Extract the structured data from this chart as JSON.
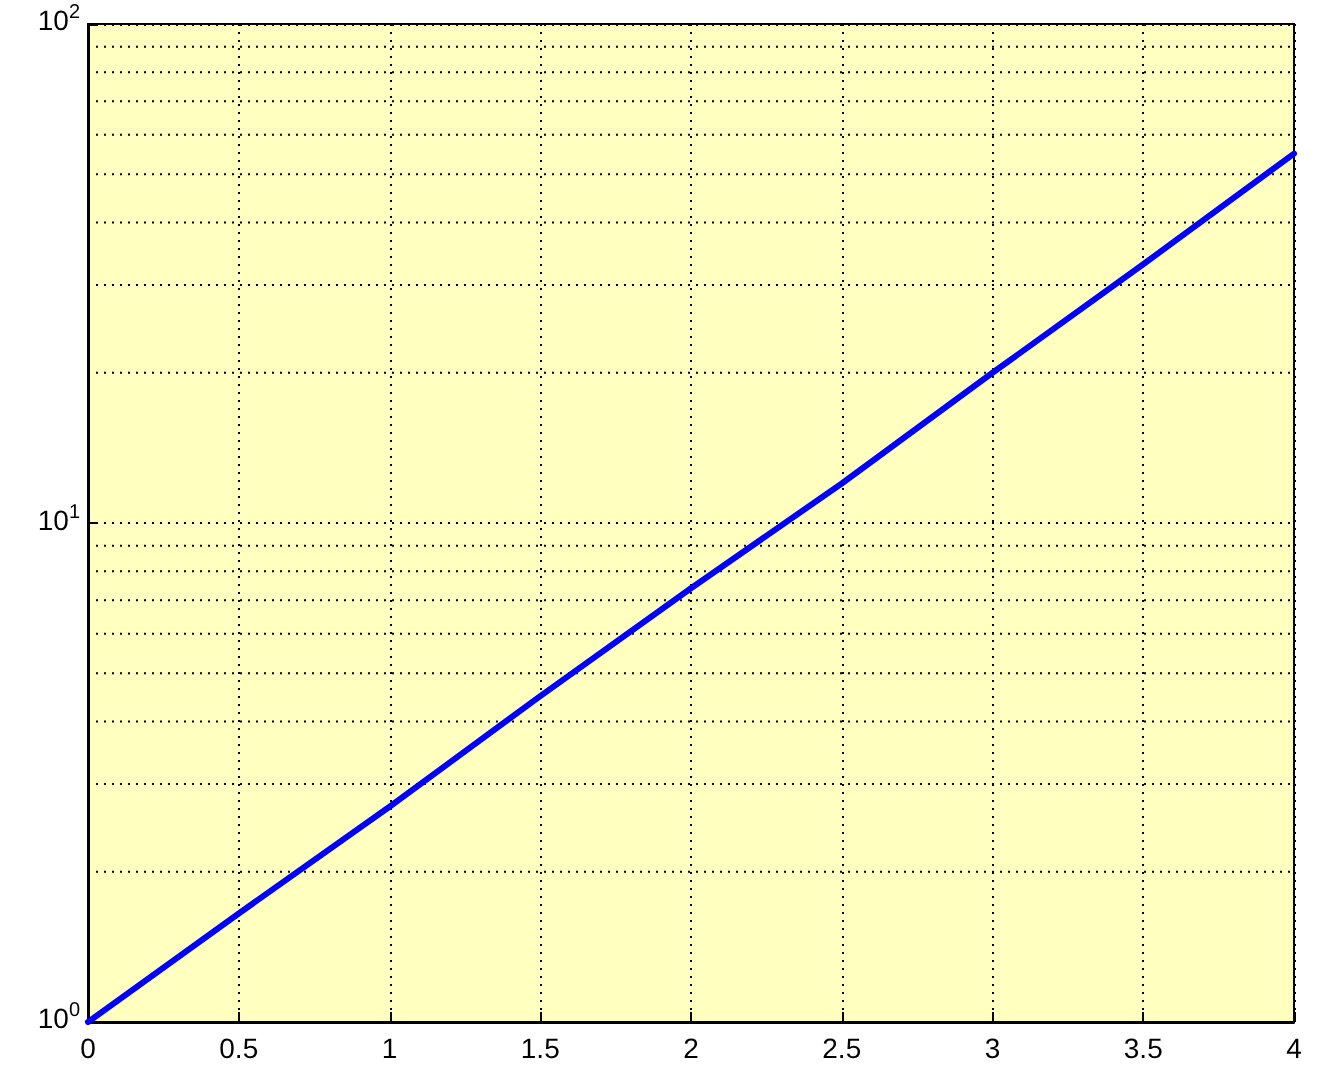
{
  "chart_data": {
    "type": "line",
    "x": [
      0,
      0.5,
      1,
      1.5,
      2,
      2.5,
      3,
      3.5,
      4
    ],
    "series": [
      {
        "color": "#0000ff",
        "values": [
          1,
          1.65,
          2.7,
          4.5,
          7.4,
          12,
          20,
          33,
          55
        ]
      }
    ],
    "xlim": [
      0,
      4
    ],
    "xticks": [
      0,
      0.5,
      1,
      1.5,
      2,
      2.5,
      3,
      3.5,
      4
    ],
    "ylim": [
      1,
      100
    ],
    "yticks": [
      {
        "value": 1,
        "label": "10$^{0}$"
      },
      {
        "value": 10,
        "label": "10$^{1}$"
      },
      {
        "value": 100,
        "label": "10$^{2}$"
      }
    ],
    "log": "y",
    "grid": true,
    "marker": "none",
    "line_style": "solid"
  }
}
